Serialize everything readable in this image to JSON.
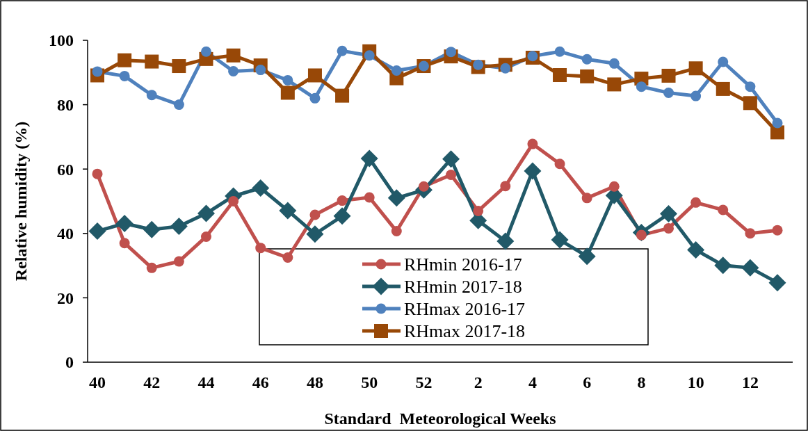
{
  "chart_data": {
    "type": "line",
    "xlabel": "Standard  Meteorological Weeks",
    "ylabel": "Relative humidity (%)",
    "categories": [
      "40",
      null,
      "42",
      null,
      "44",
      null,
      "46",
      null,
      "48",
      null,
      "50",
      null,
      "52",
      null,
      "2",
      null,
      "4",
      null,
      "6",
      null,
      "8",
      null,
      "10",
      null,
      "12",
      null
    ],
    "ylim": [
      0,
      100
    ],
    "yticks": [
      0,
      20,
      40,
      60,
      80,
      100
    ],
    "grid": false,
    "legend": "bottom",
    "line_style": "solid",
    "series": [
      {
        "name": "RHmin 2016-17",
        "color": "#c0504d",
        "marker": "circle",
        "values": [
          58.5,
          37,
          29.3,
          31.3,
          39,
          50,
          35.5,
          32.5,
          45.8,
          50.2,
          51.2,
          40.7,
          54.6,
          58.2,
          47,
          54.7,
          67.8,
          61.6,
          51,
          54.6,
          39.5,
          41.6,
          49.6,
          47.3,
          40,
          41
        ]
      },
      {
        "name": "RHmin 2017-18",
        "color": "#215968",
        "marker": "diamond",
        "values": [
          40.7,
          43.1,
          41.2,
          42.2,
          46.2,
          51.6,
          54.1,
          47.1,
          39.8,
          45.4,
          63.3,
          51,
          53.5,
          63.1,
          44,
          37.6,
          59.4,
          38,
          32.9,
          51.8,
          40.3,
          46.1,
          34.9,
          30.1,
          29.3,
          24.7
        ]
      },
      {
        "name": "RHmax 2016-17",
        "color": "#4f81bd",
        "marker": "circle",
        "values": [
          90.3,
          88.9,
          83,
          80,
          96.5,
          90.4,
          90.8,
          87.6,
          82,
          96.7,
          95.3,
          90.6,
          92,
          96.4,
          92.4,
          91.3,
          95.1,
          96.5,
          94.1,
          92.8,
          85.6,
          83.7,
          82.7,
          93.3,
          85.6,
          74.3
        ]
      },
      {
        "name": "RHmax 2017-18",
        "color": "#984807",
        "marker": "square",
        "values": [
          89.1,
          93.8,
          93.4,
          92,
          94.2,
          95.3,
          92.2,
          83.7,
          89.1,
          82.8,
          96.6,
          88.2,
          92,
          95,
          91.7,
          92.4,
          94.6,
          89.2,
          88.8,
          86.3,
          88.1,
          89,
          91.3,
          84.9,
          80.5,
          71.4
        ]
      }
    ]
  }
}
